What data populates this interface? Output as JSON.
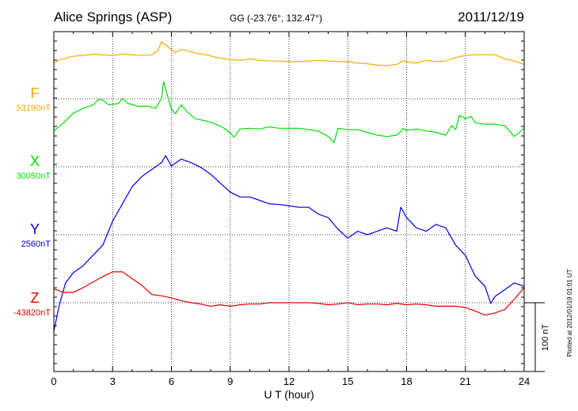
{
  "header": {
    "station": "Alice Springs (ASP)",
    "coords": "GG (-23.76°, 132.47°)",
    "date": "2011/12/19"
  },
  "chart_data": {
    "type": "line",
    "xlabel": "U T (hour)",
    "xlim": [
      0,
      24
    ],
    "x_ticks": [
      0,
      3,
      6,
      9,
      12,
      15,
      18,
      21,
      24
    ],
    "scale_bar_label": "100 nT",
    "scale_bar_nT": 100,
    "footnote": "Plotted at 2012/01/19 01:01 UT",
    "grid": true,
    "series": [
      {
        "name": "F",
        "baseline_label": "53190nT",
        "baseline_nT": 53190,
        "color": "#f5a800",
        "points": [
          [
            0,
            52
          ],
          [
            0.3,
            57
          ],
          [
            0.6,
            59
          ],
          [
            1.0,
            62
          ],
          [
            1.5,
            63
          ],
          [
            2.0,
            65
          ],
          [
            2.5,
            64
          ],
          [
            3.0,
            63
          ],
          [
            3.5,
            65
          ],
          [
            4.0,
            64
          ],
          [
            4.5,
            63
          ],
          [
            5.0,
            64
          ],
          [
            5.3,
            70
          ],
          [
            5.5,
            83
          ],
          [
            5.8,
            76
          ],
          [
            6.2,
            67
          ],
          [
            6.5,
            72
          ],
          [
            6.8,
            70
          ],
          [
            7.3,
            66
          ],
          [
            7.8,
            64
          ],
          [
            8.3,
            60
          ],
          [
            8.8,
            58
          ],
          [
            9.0,
            56
          ],
          [
            9.2,
            57
          ],
          [
            9.5,
            56
          ],
          [
            10.0,
            58
          ],
          [
            10.5,
            56
          ],
          [
            11.0,
            55
          ],
          [
            11.5,
            55
          ],
          [
            12.0,
            54
          ],
          [
            12.5,
            54
          ],
          [
            13.0,
            55
          ],
          [
            13.5,
            56
          ],
          [
            14.0,
            55
          ],
          [
            14.5,
            54
          ],
          [
            15.0,
            54
          ],
          [
            15.5,
            52
          ],
          [
            16.0,
            51
          ],
          [
            16.5,
            49
          ],
          [
            17.0,
            48
          ],
          [
            17.5,
            50
          ],
          [
            17.8,
            55
          ],
          [
            18.0,
            54
          ],
          [
            18.5,
            52
          ],
          [
            19.0,
            56
          ],
          [
            19.5,
            54
          ],
          [
            20.0,
            55
          ],
          [
            20.5,
            60
          ],
          [
            21.0,
            63
          ],
          [
            21.5,
            64
          ],
          [
            22.0,
            64
          ],
          [
            22.5,
            64
          ],
          [
            23.0,
            58
          ],
          [
            23.5,
            55
          ],
          [
            24.0,
            50
          ]
        ]
      },
      {
        "name": "X",
        "baseline_label": "30050nT",
        "baseline_nT": 30050,
        "color": "#00e000",
        "points": [
          [
            0,
            52
          ],
          [
            0.5,
            64
          ],
          [
            1.0,
            78
          ],
          [
            1.5,
            85
          ],
          [
            2.0,
            90
          ],
          [
            2.3,
            98
          ],
          [
            2.5,
            97
          ],
          [
            2.8,
            90
          ],
          [
            3.3,
            92
          ],
          [
            3.5,
            99
          ],
          [
            3.8,
            92
          ],
          [
            4.3,
            88
          ],
          [
            4.8,
            88
          ],
          [
            5.2,
            85
          ],
          [
            5.5,
            100
          ],
          [
            5.6,
            124
          ],
          [
            5.8,
            103
          ],
          [
            6.0,
            84
          ],
          [
            6.2,
            77
          ],
          [
            6.5,
            90
          ],
          [
            6.8,
            80
          ],
          [
            7.2,
            70
          ],
          [
            7.7,
            67
          ],
          [
            8.2,
            63
          ],
          [
            8.7,
            56
          ],
          [
            9.0,
            49
          ],
          [
            9.2,
            43
          ],
          [
            9.5,
            55
          ],
          [
            10.0,
            56
          ],
          [
            10.5,
            55
          ],
          [
            11.0,
            58
          ],
          [
            11.5,
            56
          ],
          [
            12.0,
            56
          ],
          [
            12.5,
            56
          ],
          [
            13.0,
            54
          ],
          [
            13.5,
            52
          ],
          [
            14.0,
            44
          ],
          [
            14.3,
            35
          ],
          [
            14.5,
            56
          ],
          [
            15.0,
            54
          ],
          [
            15.5,
            54
          ],
          [
            16.0,
            50
          ],
          [
            16.5,
            46
          ],
          [
            17.0,
            44
          ],
          [
            17.5,
            46
          ],
          [
            17.7,
            51
          ],
          [
            17.8,
            56
          ],
          [
            18.0,
            53
          ],
          [
            18.5,
            55
          ],
          [
            19.0,
            52
          ],
          [
            19.5,
            50
          ],
          [
            20.0,
            46
          ],
          [
            20.3,
            60
          ],
          [
            20.5,
            54
          ],
          [
            20.7,
            75
          ],
          [
            21.0,
            70
          ],
          [
            21.3,
            73
          ],
          [
            21.5,
            64
          ],
          [
            22.0,
            62
          ],
          [
            22.5,
            62
          ],
          [
            23.0,
            60
          ],
          [
            23.5,
            44
          ],
          [
            24.0,
            56
          ]
        ]
      },
      {
        "name": "Y",
        "baseline_label": "2560nT",
        "baseline_nT": 2560,
        "color": "#0000e0",
        "points": [
          [
            0,
            -140
          ],
          [
            0.3,
            -100
          ],
          [
            0.6,
            -70
          ],
          [
            1.0,
            -55
          ],
          [
            1.5,
            -45
          ],
          [
            2.0,
            -30
          ],
          [
            2.5,
            -15
          ],
          [
            3.0,
            20
          ],
          [
            3.5,
            45
          ],
          [
            4.0,
            70
          ],
          [
            4.5,
            85
          ],
          [
            5.0,
            95
          ],
          [
            5.5,
            105
          ],
          [
            5.7,
            115
          ],
          [
            6.0,
            100
          ],
          [
            6.5,
            110
          ],
          [
            7.0,
            105
          ],
          [
            7.5,
            98
          ],
          [
            8.0,
            88
          ],
          [
            8.5,
            75
          ],
          [
            9.0,
            62
          ],
          [
            9.5,
            55
          ],
          [
            10.0,
            55
          ],
          [
            10.5,
            50
          ],
          [
            11.0,
            45
          ],
          [
            11.5,
            44
          ],
          [
            12.0,
            42
          ],
          [
            12.5,
            40
          ],
          [
            13.0,
            40
          ],
          [
            13.5,
            30
          ],
          [
            14.0,
            25
          ],
          [
            14.5,
            8
          ],
          [
            15.0,
            -5
          ],
          [
            15.5,
            5
          ],
          [
            16.0,
            0
          ],
          [
            16.5,
            5
          ],
          [
            17.0,
            10
          ],
          [
            17.5,
            5
          ],
          [
            17.7,
            40
          ],
          [
            17.8,
            35
          ],
          [
            18.0,
            25
          ],
          [
            18.5,
            10
          ],
          [
            19.0,
            5
          ],
          [
            19.5,
            15
          ],
          [
            20.0,
            10
          ],
          [
            20.5,
            -15
          ],
          [
            21.0,
            -30
          ],
          [
            21.5,
            -60
          ],
          [
            22.0,
            -75
          ],
          [
            22.3,
            -100
          ],
          [
            22.5,
            -90
          ],
          [
            23.0,
            -80
          ],
          [
            23.5,
            -70
          ],
          [
            24.0,
            -75
          ]
        ]
      },
      {
        "name": "Z",
        "baseline_label": "-43820nT",
        "baseline_nT": -43820,
        "color": "#e00000",
        "points": [
          [
            0,
            20
          ],
          [
            0.5,
            15
          ],
          [
            1.0,
            15
          ],
          [
            1.5,
            22
          ],
          [
            2.0,
            30
          ],
          [
            2.5,
            38
          ],
          [
            3.0,
            45
          ],
          [
            3.5,
            45
          ],
          [
            4.0,
            35
          ],
          [
            4.5,
            25
          ],
          [
            5.0,
            12
          ],
          [
            5.5,
            10
          ],
          [
            6.0,
            7
          ],
          [
            6.5,
            3
          ],
          [
            7.0,
            0
          ],
          [
            7.5,
            -2
          ],
          [
            8.0,
            -5
          ],
          [
            8.5,
            -3
          ],
          [
            9.0,
            -5
          ],
          [
            9.5,
            -3
          ],
          [
            10.0,
            -2
          ],
          [
            10.5,
            -2
          ],
          [
            11.0,
            0
          ],
          [
            11.5,
            0
          ],
          [
            12.0,
            0
          ],
          [
            12.5,
            0
          ],
          [
            13.0,
            0
          ],
          [
            13.5,
            -1
          ],
          [
            14.0,
            -3
          ],
          [
            14.5,
            -2
          ],
          [
            15.0,
            0
          ],
          [
            15.5,
            -3
          ],
          [
            16.0,
            -2
          ],
          [
            16.5,
            -2
          ],
          [
            17.0,
            -3
          ],
          [
            17.5,
            -1
          ],
          [
            18.0,
            -3
          ],
          [
            18.5,
            -2
          ],
          [
            19.0,
            -3
          ],
          [
            19.5,
            -5
          ],
          [
            20.0,
            -5
          ],
          [
            20.5,
            -5
          ],
          [
            21.0,
            -7
          ],
          [
            21.5,
            -12
          ],
          [
            22.0,
            -18
          ],
          [
            22.5,
            -15
          ],
          [
            23.0,
            -10
          ],
          [
            23.5,
            5
          ],
          [
            24.0,
            22
          ]
        ]
      }
    ]
  }
}
